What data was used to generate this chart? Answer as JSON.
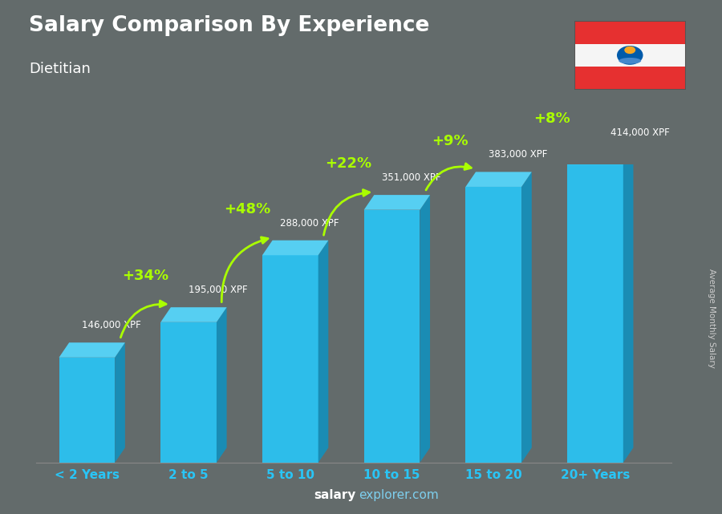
{
  "title": "Salary Comparison By Experience",
  "subtitle": "Dietitian",
  "ylabel": "Average Monthly Salary",
  "watermark": "salaryexplorer.com",
  "watermark_bold": "salary",
  "categories": [
    "< 2 Years",
    "2 to 5",
    "5 to 10",
    "10 to 15",
    "15 to 20",
    "20+ Years"
  ],
  "values": [
    146000,
    195000,
    288000,
    351000,
    383000,
    414000
  ],
  "labels": [
    "146,000 XPF",
    "195,000 XPF",
    "288,000 XPF",
    "351,000 XPF",
    "383,000 XPF",
    "414,000 XPF"
  ],
  "pct_changes": [
    "+34%",
    "+48%",
    "+22%",
    "+9%",
    "+8%"
  ],
  "bar_color_front": "#29c5f6",
  "bar_color_side": "#1490bb",
  "bar_color_top": "#55d8ff",
  "background_color": "#636b6b",
  "title_color": "#ffffff",
  "subtitle_color": "#ffffff",
  "label_color": "#ffffff",
  "pct_color": "#aaff00",
  "arrow_color": "#aaff00",
  "watermark_color": "#7ecfee",
  "watermark_bold_color": "#ffffff",
  "ylabel_color": "#cccccc",
  "xtick_color": "#29c5f6"
}
